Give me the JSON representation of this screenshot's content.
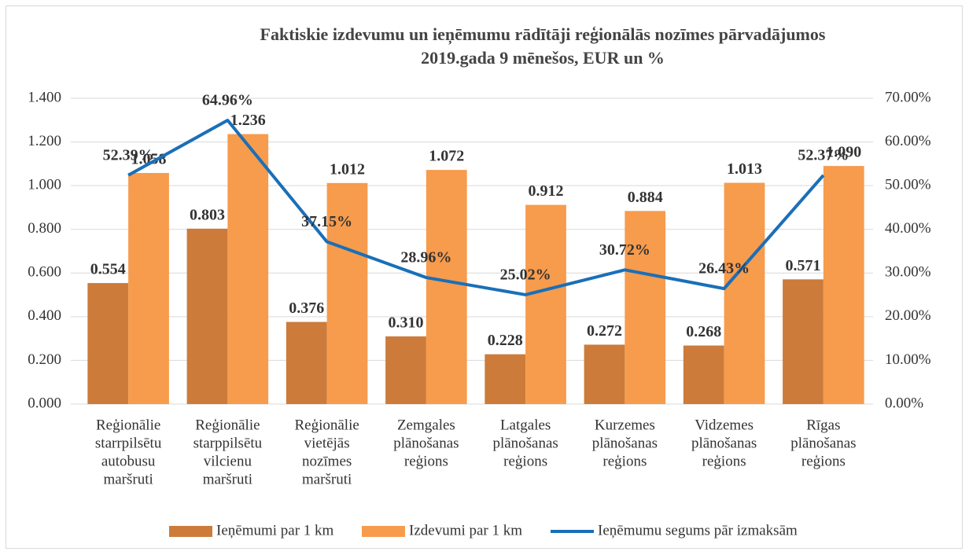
{
  "chart_data": {
    "type": "bar_line",
    "title": "Faktiskie izdevumu un ieņēmumu rādītāji reģionālās nozīmes pārvadājumos",
    "subtitle": "2019.gada 9 mēnešos, EUR un %",
    "categories": [
      [
        "Reģionālie",
        "starrpilsētu",
        "autobusu",
        "maršruti"
      ],
      [
        "Reģionālie",
        "starppilsētu",
        "vilcienu",
        "maršruti"
      ],
      [
        "Reģionālie",
        "vietējās",
        "nozīmes",
        "maršruti"
      ],
      [
        "Zemgales",
        "plānošanas",
        "reģions"
      ],
      [
        "Latgales",
        "plānošanas",
        "reģions"
      ],
      [
        "Kurzemes",
        "plānošanas",
        "reģions"
      ],
      [
        "Vidzemes",
        "plānošanas",
        "reģions"
      ],
      [
        "Rīgas",
        "plānošanas",
        "reģions"
      ]
    ],
    "series": [
      {
        "name": "Ieņēmumi par 1 km",
        "type": "bar",
        "color": "#cc7b3a",
        "values": [
          0.554,
          0.803,
          0.376,
          0.31,
          0.228,
          0.272,
          0.268,
          0.571
        ],
        "value_labels": [
          "0.554",
          "0.803",
          "0.376",
          "0.310",
          "0.228",
          "0.272",
          "0.268",
          "0.571"
        ]
      },
      {
        "name": "Izdevumi par 1 km",
        "type": "bar",
        "color": "#f79b4c",
        "values": [
          1.058,
          1.236,
          1.012,
          1.072,
          0.912,
          0.884,
          1.013,
          1.09
        ],
        "value_labels": [
          "1.058",
          "1.236",
          "1.012",
          "1.072",
          "0.912",
          "0.884",
          "1.013",
          "1.090"
        ]
      },
      {
        "name": "Ieņēmumu segums pār izmaksām",
        "type": "line",
        "axis": "y2",
        "color": "#1a6fb8",
        "values": [
          52.39,
          64.96,
          37.15,
          28.96,
          25.02,
          30.72,
          26.43,
          52.37
        ],
        "value_labels": [
          "52.39%",
          "64.96%",
          "37.15%",
          "28.96%",
          "25.02%",
          "30.72%",
          "26.43%",
          "52.37%"
        ]
      }
    ],
    "ylim": [
      0,
      1.4
    ],
    "yticks": [
      {
        "value": 0,
        "label": "0.000"
      },
      {
        "value": 0.2,
        "label": "0.200"
      },
      {
        "value": 0.4,
        "label": "0.400"
      },
      {
        "value": 0.6,
        "label": "0.600"
      },
      {
        "value": 0.8,
        "label": "0.800"
      },
      {
        "value": 1.0,
        "label": "1.000"
      },
      {
        "value": 1.2,
        "label": "1.200"
      },
      {
        "value": 1.4,
        "label": "1.400"
      }
    ],
    "y2lim": [
      0,
      70
    ],
    "y2ticks": [
      {
        "value": 0,
        "label": "0.00%"
      },
      {
        "value": 10,
        "label": "10.00%"
      },
      {
        "value": 20,
        "label": "20.00%"
      },
      {
        "value": 30,
        "label": "30.00%"
      },
      {
        "value": 40,
        "label": "40.00%"
      },
      {
        "value": 50,
        "label": "50.00%"
      },
      {
        "value": 60,
        "label": "60.00%"
      },
      {
        "value": 70,
        "label": "70.00%"
      }
    ],
    "grid": true,
    "legend": "bottom"
  }
}
